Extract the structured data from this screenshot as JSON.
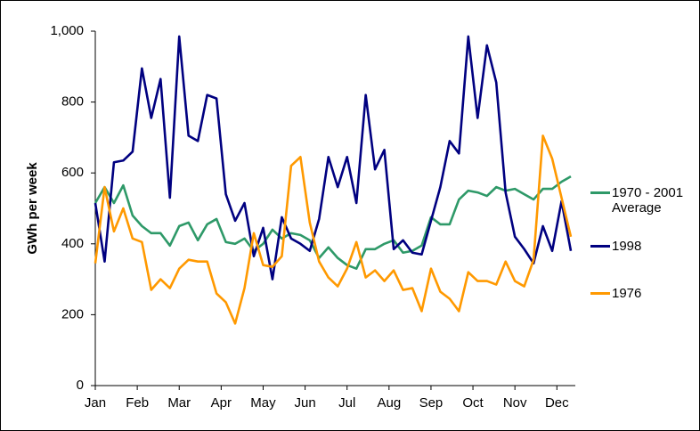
{
  "chart_data": {
    "type": "line",
    "y_label": "GWh per week",
    "x": [
      1,
      2,
      3,
      4,
      5,
      6,
      7,
      8,
      9,
      10,
      11,
      12,
      13,
      14,
      15,
      16,
      17,
      18,
      19,
      20,
      21,
      22,
      23,
      24,
      25,
      26,
      27,
      28,
      29,
      30,
      31,
      32,
      33,
      34,
      35,
      36,
      37,
      38,
      39,
      40,
      41,
      42,
      43,
      44,
      45,
      46,
      47,
      48,
      49,
      50,
      51,
      52
    ],
    "xlim": [
      1,
      52
    ],
    "xticks": [
      {
        "value": 1,
        "label": "Jan"
      },
      {
        "value": 5.5,
        "label": "Feb"
      },
      {
        "value": 10,
        "label": "Mar"
      },
      {
        "value": 14.5,
        "label": "Apr"
      },
      {
        "value": 19,
        "label": "May"
      },
      {
        "value": 23.5,
        "label": "Jun"
      },
      {
        "value": 28,
        "label": "Jul"
      },
      {
        "value": 32.5,
        "label": "Aug"
      },
      {
        "value": 37,
        "label": "Sep"
      },
      {
        "value": 41.5,
        "label": "Oct"
      },
      {
        "value": 46,
        "label": "Nov"
      },
      {
        "value": 50.5,
        "label": "Dec"
      }
    ],
    "ylim": [
      0,
      1000
    ],
    "yticks": [
      0,
      200,
      400,
      600,
      800,
      {
        "value": 1000,
        "label": "1,000"
      }
    ],
    "legend": "right",
    "series": [
      {
        "name": "1970 - 2001 Average",
        "color": "#2e9968",
        "values": [
          515,
          560,
          515,
          565,
          480,
          450,
          430,
          430,
          395,
          450,
          460,
          410,
          455,
          470,
          405,
          400,
          415,
          380,
          400,
          440,
          415,
          430,
          425,
          410,
          360,
          390,
          360,
          340,
          330,
          385,
          385,
          400,
          410,
          375,
          380,
          395,
          475,
          455,
          455,
          525,
          550,
          545,
          535,
          560,
          550,
          555,
          540,
          525,
          555,
          555,
          575,
          590
        ]
      },
      {
        "name": "1998",
        "color": "#000080",
        "values": [
          515,
          350,
          630,
          635,
          660,
          895,
          755,
          865,
          530,
          985,
          705,
          690,
          820,
          810,
          540,
          465,
          515,
          365,
          445,
          300,
          475,
          415,
          400,
          380,
          470,
          645,
          560,
          645,
          515,
          820,
          610,
          665,
          385,
          410,
          375,
          370,
          465,
          560,
          690,
          655,
          985,
          755,
          960,
          855,
          545,
          420,
          385,
          345,
          450,
          380,
          520,
          380
        ]
      },
      {
        "name": "1976",
        "color": "#ff9900",
        "values": [
          345,
          560,
          435,
          500,
          415,
          405,
          270,
          300,
          275,
          330,
          355,
          350,
          350,
          260,
          235,
          175,
          275,
          430,
          340,
          335,
          365,
          620,
          645,
          460,
          350,
          305,
          280,
          330,
          405,
          305,
          325,
          295,
          325,
          270,
          275,
          210,
          330,
          265,
          245,
          210,
          320,
          295,
          295,
          285,
          350,
          295,
          280,
          355,
          705,
          640,
          530,
          420
        ]
      }
    ]
  }
}
